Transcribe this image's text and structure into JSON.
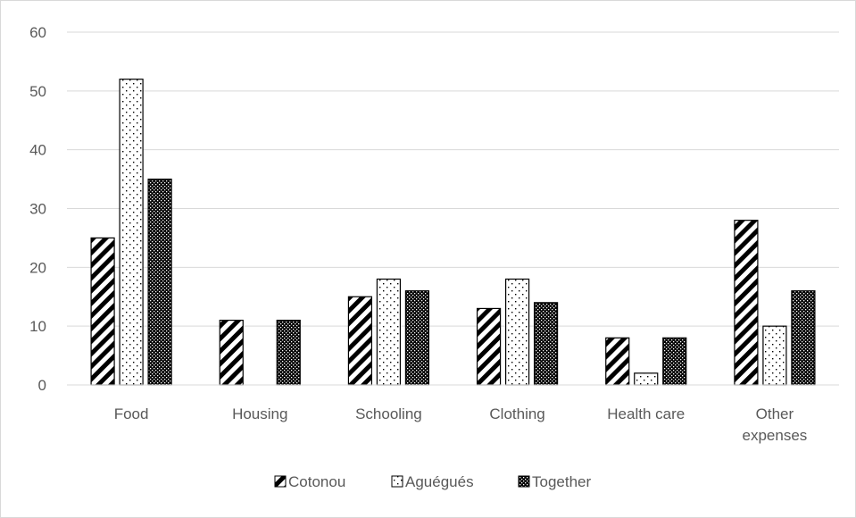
{
  "chart_data": {
    "type": "bar",
    "title": "",
    "xlabel": "",
    "ylabel": "",
    "ylim": [
      0,
      60
    ],
    "yticks": [
      0,
      10,
      20,
      30,
      40,
      50,
      60
    ],
    "grid": true,
    "legend_position": "bottom",
    "categories": [
      [
        "Food"
      ],
      [
        "Housing"
      ],
      [
        "Schooling"
      ],
      [
        "Clothing"
      ],
      [
        "Health care"
      ],
      [
        "Other",
        "expenses"
      ]
    ],
    "series": [
      {
        "name": "Cotonou",
        "pattern": "diagonal-stripes",
        "values": [
          25,
          11,
          15,
          13,
          8,
          28
        ]
      },
      {
        "name": "Aguégués",
        "pattern": "sparse-dots",
        "values": [
          52,
          0,
          18,
          18,
          2,
          10
        ]
      },
      {
        "name": "Together",
        "pattern": "dense-checker",
        "values": [
          35,
          11,
          16,
          14,
          8,
          16
        ]
      }
    ],
    "colors": {
      "grid": "#d9d9d9",
      "axis": "#d9d9d9",
      "text": "#595959",
      "bar_outline": "#000000",
      "pattern_ink": "#000000"
    }
  }
}
